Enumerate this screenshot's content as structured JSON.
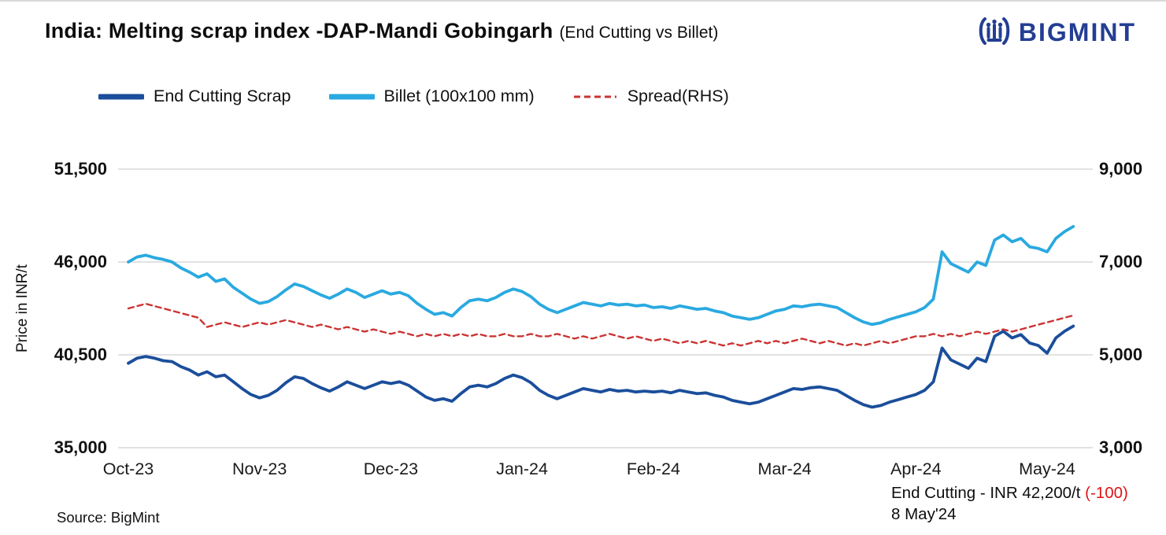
{
  "logo": {
    "text": "BIGMINT"
  },
  "colors": {
    "accent_navy": "#233e93",
    "series_end_cutting": "#1b4e9b",
    "series_billet": "#2aa9e0",
    "series_spread": "#cc3333",
    "negative": "#e01414",
    "grid": "#d9d9d9"
  },
  "footer": {
    "source": "Source: BigMint",
    "annotation_main": "End Cutting - INR 42,200/t ",
    "annotation_change": "(-100)",
    "annotation_date": "8 May'24"
  },
  "chart_data": {
    "type": "line",
    "title": "India: Melting scrap index -DAP-Mandi Gobingarh",
    "subtitle": "(End Cutting vs Billet)",
    "x_labels": [
      "Oct-23",
      "Nov-23",
      "Dec-23",
      "Jan-24",
      "Feb-24",
      "Mar-24",
      "Apr-24",
      "May-24"
    ],
    "points_per_month": 15,
    "legend_position": "top-left",
    "grid": "horizontal",
    "left_axis": {
      "label": "Price in INR/t",
      "min": 35000,
      "max": 51500,
      "ticks": [
        35000,
        40500,
        46000,
        51500
      ],
      "tick_labels": [
        "35,000",
        "40,500",
        "46,000",
        "51,500"
      ]
    },
    "right_axis": {
      "min": 3000,
      "max": 9000,
      "ticks": [
        3000,
        5000,
        7000,
        9000
      ],
      "tick_labels": [
        "3,000",
        "5,000",
        "7,000",
        "9,000"
      ]
    },
    "series": [
      {
        "name": "End Cutting Scrap",
        "axis": "left",
        "color": "#1b4e9b",
        "dash": false,
        "values": [
          40000,
          40300,
          40400,
          40300,
          40150,
          40100,
          39800,
          39600,
          39300,
          39500,
          39200,
          39300,
          38900,
          38500,
          38150,
          37950,
          38100,
          38400,
          38850,
          39200,
          39100,
          38800,
          38550,
          38350,
          38600,
          38900,
          38700,
          38500,
          38700,
          38900,
          38800,
          38900,
          38700,
          38350,
          38000,
          37800,
          37900,
          37750,
          38200,
          38600,
          38700,
          38600,
          38800,
          39100,
          39300,
          39150,
          38850,
          38400,
          38100,
          37900,
          38100,
          38300,
          38500,
          38400,
          38300,
          38450,
          38350,
          38400,
          38300,
          38350,
          38300,
          38350,
          38250,
          38400,
          38300,
          38200,
          38250,
          38100,
          38000,
          37800,
          37700,
          37600,
          37700,
          37900,
          38100,
          38300,
          38500,
          38450,
          38550,
          38600,
          38500,
          38400,
          38100,
          37800,
          37550,
          37400,
          37500,
          37700,
          37850,
          38000,
          38150,
          38400,
          38900,
          40900,
          40200,
          39950,
          39700,
          40300,
          40100,
          41600,
          41900,
          41500,
          41700,
          41200,
          41050,
          40600,
          41500,
          41900,
          42200
        ]
      },
      {
        "name": "Billet (100x100 mm)",
        "axis": "left",
        "color": "#2aa9e0",
        "dash": false,
        "values": [
          46000,
          46300,
          46400,
          46250,
          46150,
          46000,
          45650,
          45400,
          45100,
          45300,
          44850,
          45000,
          44500,
          44150,
          43800,
          43550,
          43650,
          43950,
          44350,
          44700,
          44550,
          44300,
          44050,
          43850,
          44100,
          44400,
          44200,
          43900,
          44100,
          44300,
          44100,
          44200,
          44000,
          43550,
          43200,
          42900,
          43000,
          42800,
          43300,
          43700,
          43800,
          43700,
          43900,
          44200,
          44400,
          44250,
          43950,
          43500,
          43200,
          43000,
          43200,
          43400,
          43600,
          43500,
          43400,
          43550,
          43450,
          43500,
          43400,
          43450,
          43300,
          43350,
          43250,
          43400,
          43300,
          43200,
          43250,
          43100,
          43000,
          42800,
          42700,
          42600,
          42700,
          42900,
          43100,
          43200,
          43400,
          43350,
          43450,
          43500,
          43400,
          43300,
          43000,
          42700,
          42450,
          42300,
          42400,
          42600,
          42750,
          42900,
          43050,
          43300,
          43800,
          46600,
          45900,
          45650,
          45400,
          46000,
          45800,
          47300,
          47600,
          47200,
          47400,
          46900,
          46800,
          46600,
          47400,
          47800,
          48100
        ]
      },
      {
        "name": "Spread(RHS)",
        "axis": "right",
        "color": "#cc3333",
        "dash": true,
        "values": [
          6000,
          6050,
          6100,
          6050,
          6000,
          5950,
          5900,
          5850,
          5800,
          5600,
          5650,
          5700,
          5650,
          5600,
          5650,
          5700,
          5650,
          5700,
          5750,
          5700,
          5650,
          5600,
          5650,
          5600,
          5550,
          5600,
          5550,
          5500,
          5550,
          5500,
          5450,
          5500,
          5450,
          5400,
          5450,
          5400,
          5450,
          5400,
          5450,
          5400,
          5450,
          5400,
          5400,
          5450,
          5400,
          5400,
          5450,
          5400,
          5400,
          5450,
          5400,
          5350,
          5400,
          5350,
          5400,
          5450,
          5400,
          5350,
          5400,
          5350,
          5300,
          5350,
          5300,
          5250,
          5300,
          5250,
          5300,
          5250,
          5200,
          5250,
          5200,
          5250,
          5300,
          5250,
          5300,
          5250,
          5300,
          5350,
          5300,
          5250,
          5300,
          5250,
          5200,
          5250,
          5200,
          5250,
          5300,
          5250,
          5300,
          5350,
          5400,
          5400,
          5450,
          5400,
          5450,
          5400,
          5450,
          5500,
          5450,
          5500,
          5550,
          5500,
          5550,
          5600,
          5650,
          5700,
          5750,
          5800,
          5850
        ]
      }
    ]
  }
}
